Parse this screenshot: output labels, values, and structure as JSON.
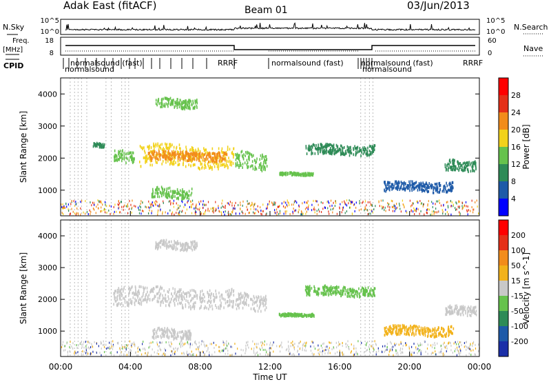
{
  "header": {
    "station": "Adak East (fitACF)",
    "beam": "Beam 01",
    "date": "03/Jun/2013"
  },
  "noise_panel": {
    "left_label": "N.Sky",
    "right_label": "N.Search",
    "left_ticks": [
      "10^5",
      "10^0"
    ],
    "right_ticks": [
      "10^5",
      "10^0"
    ]
  },
  "freq_panel": {
    "left_label_line1": "Freq.",
    "left_label_line2": "[MHz]",
    "left_ticks": [
      "18",
      "8"
    ],
    "right_label": "Nave",
    "right_ticks": [
      "60",
      "0"
    ]
  },
  "cpid": {
    "label": "CPID",
    "top_names": [
      "normalsound (fast)",
      "RRRF",
      "RRRF"
    ],
    "main_name": "normalsound (fast)",
    "low_names": [
      "normalsound",
      "normalsound"
    ]
  },
  "chart_data": [
    {
      "type": "heatmap",
      "title": "",
      "quantity": "Power",
      "colorbar_label": "Power [dB]",
      "colorbar_ticks": [
        "28",
        "24",
        "20",
        "16",
        "12",
        "8",
        "4"
      ],
      "colorbar_levels": [
        4,
        8,
        12,
        16,
        20,
        24,
        28
      ],
      "colorbar_colors": [
        "#0000ff",
        "#1e5aa8",
        "#2e8b57",
        "#66c24d",
        "#f2d21b",
        "#f28c1b",
        "#e53018",
        "#ff0000"
      ],
      "ylabel": "Slant Range [km]",
      "yticks": [
        "1000",
        "2000",
        "3000",
        "4000"
      ],
      "ylim": [
        200,
        4500
      ],
      "xlim": [
        0,
        24
      ],
      "echo_regions": [
        {
          "t0": 1.8,
          "t1": 2.5,
          "r": 2400,
          "dr": 60,
          "level": 8
        },
        {
          "t0": 3.0,
          "t1": 4.2,
          "r": 2050,
          "dr": 180,
          "level": 12
        },
        {
          "t0": 4.5,
          "t1": 9.9,
          "r": 2050,
          "dr": 330,
          "level": 16
        },
        {
          "t0": 5.0,
          "t1": 9.5,
          "r": 2050,
          "dr": 140,
          "level": 22
        },
        {
          "t0": 5.4,
          "t1": 7.8,
          "r": 3700,
          "dr": 140,
          "level": 12
        },
        {
          "t0": 5.2,
          "t1": 7.5,
          "r": 900,
          "dr": 160,
          "level": 12
        },
        {
          "t0": 10.0,
          "t1": 11.8,
          "r": 1900,
          "dr": 260,
          "level": 12
        },
        {
          "t0": 12.5,
          "t1": 14.5,
          "r": 1500,
          "dr": 40,
          "level": 12
        },
        {
          "t0": 14.0,
          "t1": 18.0,
          "r": 2250,
          "dr": 150,
          "level": 10
        },
        {
          "t0": 18.5,
          "t1": 22.5,
          "r": 1100,
          "dr": 150,
          "level": 6
        },
        {
          "t0": 22.0,
          "t1": 23.8,
          "r": 1750,
          "dr": 160,
          "level": 8
        }
      ]
    },
    {
      "type": "heatmap",
      "title": "",
      "quantity": "Velocity",
      "colorbar_label": "Velocity [m s^-1]",
      "colorbar_ticks": [
        "200",
        "100",
        "50",
        "15",
        "-15",
        "-50",
        "-100",
        "-200"
      ],
      "colorbar_levels": [
        200,
        100,
        50,
        15,
        -15,
        -50,
        -100,
        -200
      ],
      "colorbar_colors": [
        "#1b2fa8",
        "#1e5aa8",
        "#2e8b57",
        "#66c24d",
        "#c8c8c8",
        "#f2b21b",
        "#f28c1b",
        "#e53018",
        "#ff0000"
      ],
      "ylabel": "Slant Range [km]",
      "yticks": [
        "1000",
        "2000",
        "3000",
        "4000"
      ],
      "ylim": [
        200,
        4500
      ],
      "xlim": [
        0,
        24
      ],
      "xlabel": "Time UT",
      "xticks": [
        "00:00",
        "04:00",
        "08:00",
        "12:00",
        "16:00",
        "20:00",
        "00:00"
      ],
      "echo_regions": [
        {
          "t0": 3.0,
          "t1": 9.9,
          "r": 2050,
          "dr": 300,
          "velocity": 0
        },
        {
          "t0": 5.4,
          "t1": 7.8,
          "r": 3700,
          "dr": 140,
          "velocity": 0
        },
        {
          "t0": 5.2,
          "t1": 7.5,
          "r": 900,
          "dr": 160,
          "velocity": 0
        },
        {
          "t0": 10.0,
          "t1": 11.8,
          "r": 1900,
          "dr": 250,
          "velocity": 0
        },
        {
          "t0": 12.5,
          "t1": 14.5,
          "r": 1500,
          "dr": 40,
          "velocity": 30
        },
        {
          "t0": 14.0,
          "t1": 18.0,
          "r": 2250,
          "dr": 150,
          "velocity": 20
        },
        {
          "t0": 18.5,
          "t1": 22.5,
          "r": 1000,
          "dr": 150,
          "velocity": -40
        },
        {
          "t0": 22.0,
          "t1": 23.8,
          "r": 1650,
          "dr": 150,
          "velocity": 0
        }
      ]
    }
  ]
}
